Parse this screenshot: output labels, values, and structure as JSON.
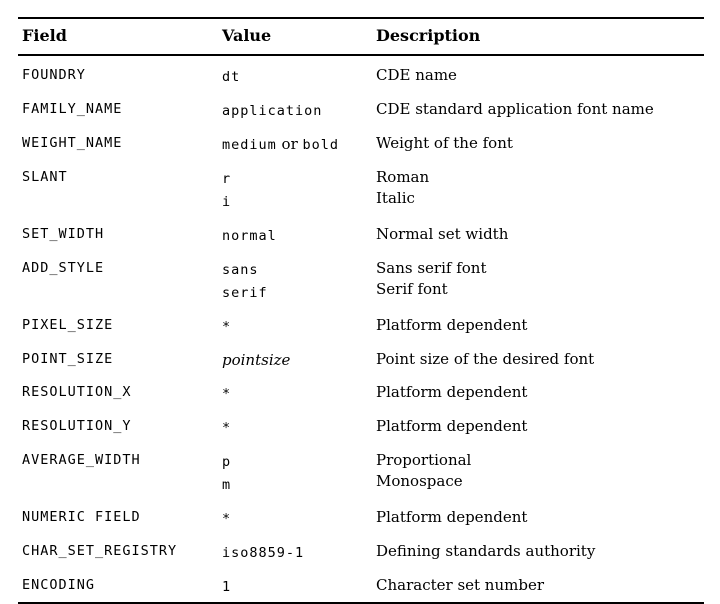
{
  "page": {
    "background": "#ffffff",
    "text_color": "#000000",
    "rule_color": "#000000"
  },
  "table": {
    "columns": [
      {
        "label": "Field"
      },
      {
        "label": "Value"
      },
      {
        "label": "Description"
      }
    ],
    "rows": [
      {
        "field": "FOUNDRY",
        "value_lines": [
          [
            {
              "t": "dt",
              "s": "mono"
            }
          ]
        ],
        "desc_lines": [
          "CDE name"
        ]
      },
      {
        "field": "FAMILY_NAME",
        "value_lines": [
          [
            {
              "t": "application",
              "s": "mono"
            }
          ]
        ],
        "desc_lines": [
          "CDE standard application font name"
        ]
      },
      {
        "field": "WEIGHT_NAME",
        "value_lines": [
          [
            {
              "t": "medium",
              "s": "mono"
            },
            {
              "t": " or ",
              "s": "serif"
            },
            {
              "t": "bold",
              "s": "mono"
            }
          ]
        ],
        "desc_lines": [
          "Weight of the font"
        ]
      },
      {
        "field": "SLANT",
        "value_lines": [
          [
            {
              "t": "r",
              "s": "mono"
            }
          ],
          [
            {
              "t": "i",
              "s": "mono"
            }
          ]
        ],
        "desc_lines": [
          "Roman",
          "Italic"
        ]
      },
      {
        "field": "SET_WIDTH",
        "value_lines": [
          [
            {
              "t": "normal",
              "s": "mono"
            }
          ]
        ],
        "desc_lines": [
          "Normal set width"
        ]
      },
      {
        "field": "ADD_STYLE",
        "value_lines": [
          [
            {
              "t": "sans",
              "s": "mono"
            }
          ],
          [
            {
              "t": "serif",
              "s": "mono"
            }
          ]
        ],
        "desc_lines": [
          "Sans serif font",
          "Serif font"
        ]
      },
      {
        "field": "PIXEL_SIZE",
        "value_lines": [
          [
            {
              "t": "*",
              "s": "mono"
            }
          ]
        ],
        "desc_lines": [
          "Platform dependent"
        ]
      },
      {
        "field": "POINT_SIZE",
        "value_lines": [
          [
            {
              "t": "pointsize",
              "s": "italic"
            }
          ]
        ],
        "desc_lines": [
          "Point size of the desired font"
        ]
      },
      {
        "field": "RESOLUTION_X",
        "value_lines": [
          [
            {
              "t": "*",
              "s": "mono"
            }
          ]
        ],
        "desc_lines": [
          "Platform dependent"
        ]
      },
      {
        "field": "RESOLUTION_Y",
        "value_lines": [
          [
            {
              "t": "*",
              "s": "mono"
            }
          ]
        ],
        "desc_lines": [
          "Platform dependent"
        ]
      },
      {
        "field": "AVERAGE_WIDTH",
        "value_lines": [
          [
            {
              "t": "p",
              "s": "mono"
            }
          ],
          [
            {
              "t": "m",
              "s": "mono"
            }
          ]
        ],
        "desc_lines": [
          "Proportional",
          "Monospace"
        ]
      },
      {
        "field": "NUMERIC FIELD",
        "value_lines": [
          [
            {
              "t": "*",
              "s": "mono"
            }
          ]
        ],
        "desc_lines": [
          "Platform dependent"
        ]
      },
      {
        "field": "CHAR_SET_REGISTRY",
        "value_lines": [
          [
            {
              "t": "iso8859-1",
              "s": "mono"
            }
          ]
        ],
        "desc_lines": [
          "Defining standards authority"
        ]
      },
      {
        "field": "ENCODING",
        "value_lines": [
          [
            {
              "t": "1",
              "s": "mono"
            }
          ]
        ],
        "desc_lines": [
          "Character set number"
        ]
      }
    ]
  }
}
